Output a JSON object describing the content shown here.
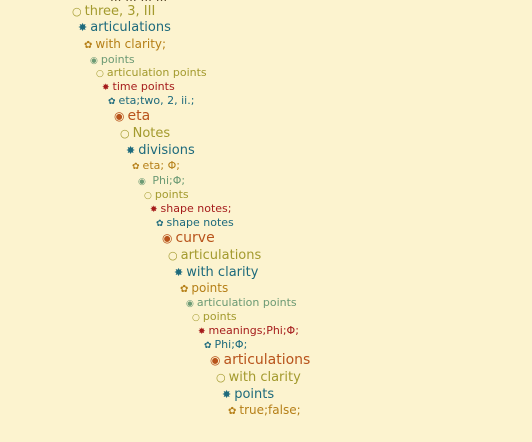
{
  "top_cutoff": "... ... ... ...",
  "items": [
    {
      "icon": "circle-open-icon",
      "glyph": "○",
      "label": "three, 3, III",
      "color": "olive"
    },
    {
      "icon": "asterisk-icon",
      "glyph": "✸",
      "label": "articulations",
      "color": "teal"
    },
    {
      "icon": "flower-icon",
      "glyph": "✿",
      "label": "with clarity;",
      "color": "gold"
    },
    {
      "icon": "circle-dot-icon",
      "glyph": "◉",
      "label": "points",
      "color": "sage"
    },
    {
      "icon": "circle-open-icon",
      "glyph": "○",
      "label": "articulation points",
      "color": "olive"
    },
    {
      "icon": "asterisk-icon",
      "glyph": "✸",
      "label": "time points",
      "color": "red"
    },
    {
      "icon": "flower-icon",
      "glyph": "✿",
      "label": "eta;two, 2, ii.;",
      "color": "teal"
    },
    {
      "icon": "circle-dot-icon",
      "glyph": "◉",
      "label": "eta",
      "color": "orange"
    },
    {
      "icon": "circle-open-icon",
      "glyph": "○",
      "label": "Notes",
      "color": "olive"
    },
    {
      "icon": "asterisk-icon",
      "glyph": "✸",
      "label": "divisions",
      "color": "teal"
    },
    {
      "icon": "flower-icon",
      "glyph": "✿",
      "label": "eta;  Φ;",
      "color": "gold"
    },
    {
      "icon": "circle-dot-icon",
      "glyph": "◉",
      "label": " Phi;Φ;",
      "color": "sage"
    },
    {
      "icon": "circle-open-icon",
      "glyph": "○",
      "label": "points",
      "color": "olive"
    },
    {
      "icon": "asterisk-icon",
      "glyph": "✸",
      "label": "shape notes;",
      "color": "red"
    },
    {
      "icon": "flower-icon",
      "glyph": "✿",
      "label": "shape notes",
      "color": "teal"
    },
    {
      "icon": "circle-dot-icon",
      "glyph": "◉",
      "label": "curve",
      "color": "orange"
    },
    {
      "icon": "circle-open-icon",
      "glyph": "○",
      "label": "articulations",
      "color": "olive"
    },
    {
      "icon": "asterisk-icon",
      "glyph": "✸",
      "label": "with clarity",
      "color": "teal"
    },
    {
      "icon": "flower-icon",
      "glyph": "✿",
      "label": "points",
      "color": "gold"
    },
    {
      "icon": "circle-dot-icon",
      "glyph": "◉",
      "label": "articulation points",
      "color": "sage"
    },
    {
      "icon": "circle-open-icon",
      "glyph": "○",
      "label": "points",
      "color": "olive"
    },
    {
      "icon": "asterisk-icon",
      "glyph": "✸",
      "label": "meanings;Phi;Φ;",
      "color": "red"
    },
    {
      "icon": "flower-icon",
      "glyph": "✿",
      "label": "Phi;Φ;",
      "color": "teal"
    },
    {
      "icon": "circle-dot-icon",
      "glyph": "◉",
      "label": "articulations",
      "color": "orange"
    },
    {
      "icon": "circle-open-icon",
      "glyph": "○",
      "label": "with clarity",
      "color": "olive"
    },
    {
      "icon": "asterisk-icon",
      "glyph": "✸",
      "label": "points",
      "color": "teal"
    },
    {
      "icon": "flower-icon",
      "glyph": "✿",
      "label": "true;false;",
      "color": "gold"
    }
  ]
}
